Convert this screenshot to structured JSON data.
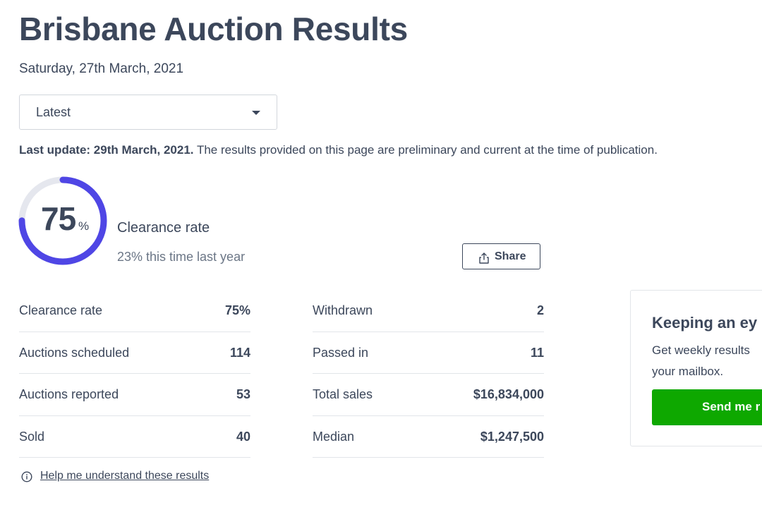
{
  "page": {
    "title": "Brisbane Auction Results",
    "date": "Saturday, 27th March, 2021"
  },
  "filter": {
    "selected": "Latest"
  },
  "update": {
    "bold": "Last update: 29th March, 2021.",
    "text": " The results provided on this page are preliminary and current at the time of publication."
  },
  "clearance": {
    "value": "75",
    "percent_sign": "%",
    "fraction": 0.75,
    "label": "Clearance rate",
    "last_year": "23% this time last year",
    "ring_color": "#4f46e5",
    "track_color": "#e5e7ee"
  },
  "share": {
    "label": "Share"
  },
  "stats_left": [
    {
      "key": "Clearance rate",
      "value": "75%"
    },
    {
      "key": "Auctions scheduled",
      "value": "114"
    },
    {
      "key": "Auctions reported",
      "value": "53"
    },
    {
      "key": "Sold",
      "value": "40"
    }
  ],
  "stats_right": [
    {
      "key": "Withdrawn",
      "value": "2"
    },
    {
      "key": "Passed in",
      "value": "11"
    },
    {
      "key": "Total sales",
      "value": "$16,834,000"
    },
    {
      "key": "Median",
      "value": "$1,247,500"
    }
  ],
  "help": {
    "label": "Help me understand these results"
  },
  "promo": {
    "heading": "Keeping an ey",
    "text": "Get weekly results your mailbox.",
    "button": "Send me r",
    "button_color": "#0ea800"
  }
}
